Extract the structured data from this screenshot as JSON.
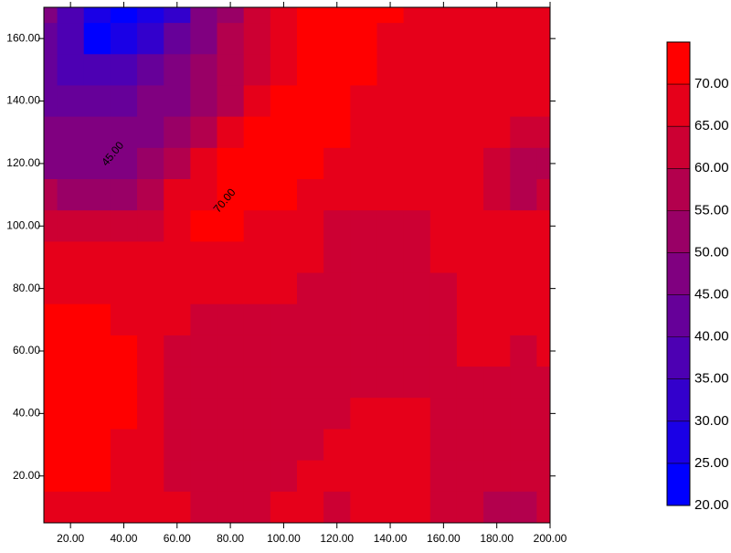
{
  "chart_data": {
    "type": "contour",
    "x": [
      10,
      20,
      30,
      40,
      50,
      60,
      70,
      80,
      90,
      100,
      110,
      120,
      130,
      140,
      150,
      160,
      170,
      180,
      190,
      200
    ],
    "y": [
      170,
      160,
      150,
      140,
      130,
      120,
      110,
      100,
      90,
      80,
      70,
      60,
      50,
      40,
      30,
      20,
      10
    ],
    "z": [
      [
        45,
        38,
        28,
        22,
        25,
        33,
        45,
        52,
        60,
        67,
        72,
        72,
        72,
        72,
        67,
        67,
        67,
        67,
        67,
        67
      ],
      [
        42,
        35,
        22,
        28,
        32,
        40,
        47,
        55,
        62,
        67,
        72,
        72,
        72,
        67,
        67,
        67,
        67,
        67,
        67,
        67
      ],
      [
        40,
        37,
        35,
        38,
        40,
        45,
        50,
        55,
        62,
        67,
        72,
        72,
        72,
        67,
        67,
        67,
        67,
        67,
        67,
        67
      ],
      [
        42,
        42,
        42,
        43,
        45,
        48,
        53,
        58,
        65,
        72,
        72,
        72,
        67,
        67,
        67,
        67,
        67,
        67,
        67,
        67
      ],
      [
        45,
        45,
        45,
        46,
        48,
        52,
        57,
        65,
        72,
        72,
        72,
        72,
        67,
        67,
        67,
        67,
        67,
        67,
        62,
        62
      ],
      [
        48,
        48,
        47,
        48,
        52,
        57,
        65,
        72,
        72,
        72,
        72,
        67,
        67,
        67,
        67,
        67,
        67,
        62,
        57,
        57
      ],
      [
        55,
        52,
        50,
        52,
        57,
        65,
        67,
        72,
        72,
        72,
        67,
        67,
        67,
        67,
        67,
        67,
        67,
        62,
        57,
        62
      ],
      [
        62,
        62,
        62,
        62,
        62,
        65,
        72,
        72,
        67,
        67,
        67,
        62,
        62,
        62,
        62,
        67,
        67,
        67,
        67,
        67
      ],
      [
        67,
        67,
        67,
        67,
        67,
        67,
        67,
        67,
        67,
        67,
        67,
        62,
        62,
        62,
        62,
        67,
        67,
        67,
        67,
        67
      ],
      [
        67,
        67,
        67,
        67,
        67,
        67,
        67,
        67,
        67,
        67,
        62,
        62,
        62,
        62,
        62,
        62,
        67,
        67,
        67,
        67
      ],
      [
        72,
        72,
        72,
        67,
        67,
        67,
        62,
        62,
        62,
        62,
        62,
        62,
        62,
        62,
        62,
        62,
        67,
        67,
        67,
        67
      ],
      [
        72,
        72,
        72,
        72,
        67,
        62,
        62,
        62,
        62,
        62,
        62,
        62,
        62,
        62,
        62,
        62,
        67,
        67,
        62,
        67
      ],
      [
        72,
        72,
        72,
        72,
        67,
        62,
        62,
        62,
        62,
        62,
        62,
        62,
        62,
        62,
        62,
        62,
        62,
        62,
        62,
        62
      ],
      [
        72,
        72,
        72,
        72,
        67,
        62,
        62,
        62,
        62,
        62,
        62,
        62,
        67,
        67,
        67,
        62,
        62,
        62,
        62,
        62
      ],
      [
        72,
        72,
        72,
        67,
        67,
        62,
        62,
        62,
        62,
        62,
        62,
        67,
        67,
        67,
        67,
        62,
        62,
        62,
        62,
        62
      ],
      [
        72,
        72,
        72,
        67,
        67,
        62,
        62,
        62,
        62,
        62,
        67,
        67,
        67,
        67,
        67,
        62,
        62,
        62,
        62,
        62
      ],
      [
        67,
        67,
        67,
        67,
        67,
        67,
        62,
        62,
        62,
        67,
        67,
        62,
        67,
        67,
        67,
        62,
        62,
        57,
        57,
        62
      ]
    ],
    "xlim": [
      10,
      200
    ],
    "ylim": [
      5,
      170
    ],
    "xticks": [
      {
        "value": 20,
        "label": "20.00"
      },
      {
        "value": 40,
        "label": "40.00"
      },
      {
        "value": 60,
        "label": "60.00"
      },
      {
        "value": 80,
        "label": "80.00"
      },
      {
        "value": 100,
        "label": "100.00"
      },
      {
        "value": 120,
        "label": "120.00"
      },
      {
        "value": 140,
        "label": "140.00"
      },
      {
        "value": 160,
        "label": "160.00"
      },
      {
        "value": 180,
        "label": "180.00"
      },
      {
        "value": 200,
        "label": "200.00"
      }
    ],
    "yticks": [
      {
        "value": 20,
        "label": "20.00"
      },
      {
        "value": 40,
        "label": "40.00"
      },
      {
        "value": 60,
        "label": "60.00"
      },
      {
        "value": 80,
        "label": "80.00"
      },
      {
        "value": 100,
        "label": "100.00"
      },
      {
        "value": 120,
        "label": "120.00"
      },
      {
        "value": 140,
        "label": "140.00"
      },
      {
        "value": 160,
        "label": "160.00"
      }
    ],
    "levels": [
      20,
      25,
      30,
      35,
      40,
      45,
      50,
      55,
      60,
      65,
      70,
      75
    ],
    "colors": [
      "#0000ff",
      "#1a00e6",
      "#3300cc",
      "#4d00b3",
      "#660099",
      "#800080",
      "#990066",
      "#b3004d",
      "#cc0033",
      "#e6001a",
      "#ff0000"
    ],
    "cticks": [
      {
        "value": 20,
        "label": "20.00"
      },
      {
        "value": 25,
        "label": "25.00"
      },
      {
        "value": 30,
        "label": "30.00"
      },
      {
        "value": 35,
        "label": "35.00"
      },
      {
        "value": 40,
        "label": "40.00"
      },
      {
        "value": 45,
        "label": "45.00"
      },
      {
        "value": 50,
        "label": "50.00"
      },
      {
        "value": 55,
        "label": "55.00"
      },
      {
        "value": 60,
        "label": "60.00"
      },
      {
        "value": 65,
        "label": "65.00"
      },
      {
        "value": 70,
        "label": "70.00"
      }
    ],
    "annotations": [
      {
        "text": "45.00",
        "x": 36,
        "y": 123
      },
      {
        "text": "70.00",
        "x": 78,
        "y": 108
      }
    ]
  }
}
